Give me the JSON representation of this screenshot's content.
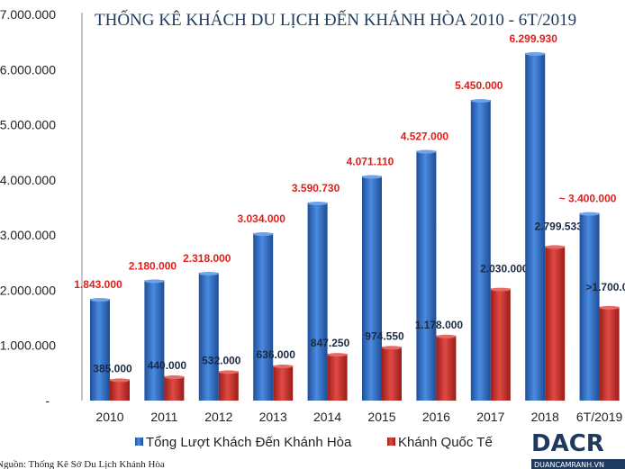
{
  "chart_data": {
    "type": "bar",
    "title": "THỐNG KÊ KHÁCH DU LỊCH ĐẾN KHÁNH HÒA 2010 - 6T/2019",
    "categories": [
      "2010",
      "2011",
      "2012",
      "2013",
      "2014",
      "2015",
      "2016",
      "2017",
      "2018",
      "6T/2019"
    ],
    "series": [
      {
        "name": "Tổng Lượt Khách Đến Khánh Hòa",
        "color": "#2f6fc4",
        "values": [
          1843000,
          2180000,
          2318000,
          3034000,
          3590730,
          4071110,
          4527000,
          5450000,
          6299930,
          3400000
        ],
        "labels": [
          "1.843.000",
          "2.180.000",
          "2.318.000",
          "3.034.000",
          "3.590.730",
          "4.071.110",
          "4.527.000",
          "5.450.000",
          "6.299.930",
          "~ 3.400.000"
        ]
      },
      {
        "name": "Khánh Quốc Tế",
        "color": "#c9302c",
        "values": [
          385000,
          440000,
          532000,
          636000,
          847250,
          974550,
          1178000,
          2030000,
          2799533,
          1700000
        ],
        "labels": [
          "385.000",
          "440.000",
          "532.000",
          "636.000",
          "847.250",
          "974.550",
          "1.178.000",
          "2.030.000",
          "2.799.533",
          ">1.700.000"
        ]
      }
    ],
    "yticks": [
      "-",
      "1.000.000",
      "2.000.000",
      "3.000.000",
      "4.000.000",
      "5.000.000",
      "6.000.000",
      "7.000.000"
    ],
    "ylim": [
      0,
      7000000
    ],
    "grid": false,
    "legend": "bottom",
    "source": "Nguồn: Thống Kê Sở Du Lịch Khánh Hòa",
    "logo": "DACR DUANCAMRANH.VN"
  }
}
